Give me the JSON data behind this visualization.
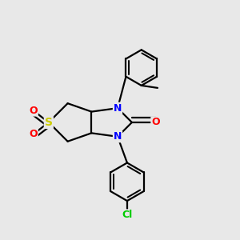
{
  "bg_color": "#e8e8e8",
  "atom_colors": {
    "N": "#0000ff",
    "O": "#ff0000",
    "S": "#cccc00",
    "Cl": "#00cc00",
    "C": "#000000"
  },
  "bond_color": "#000000",
  "bond_width": 1.6,
  "font_size_atom": 9
}
